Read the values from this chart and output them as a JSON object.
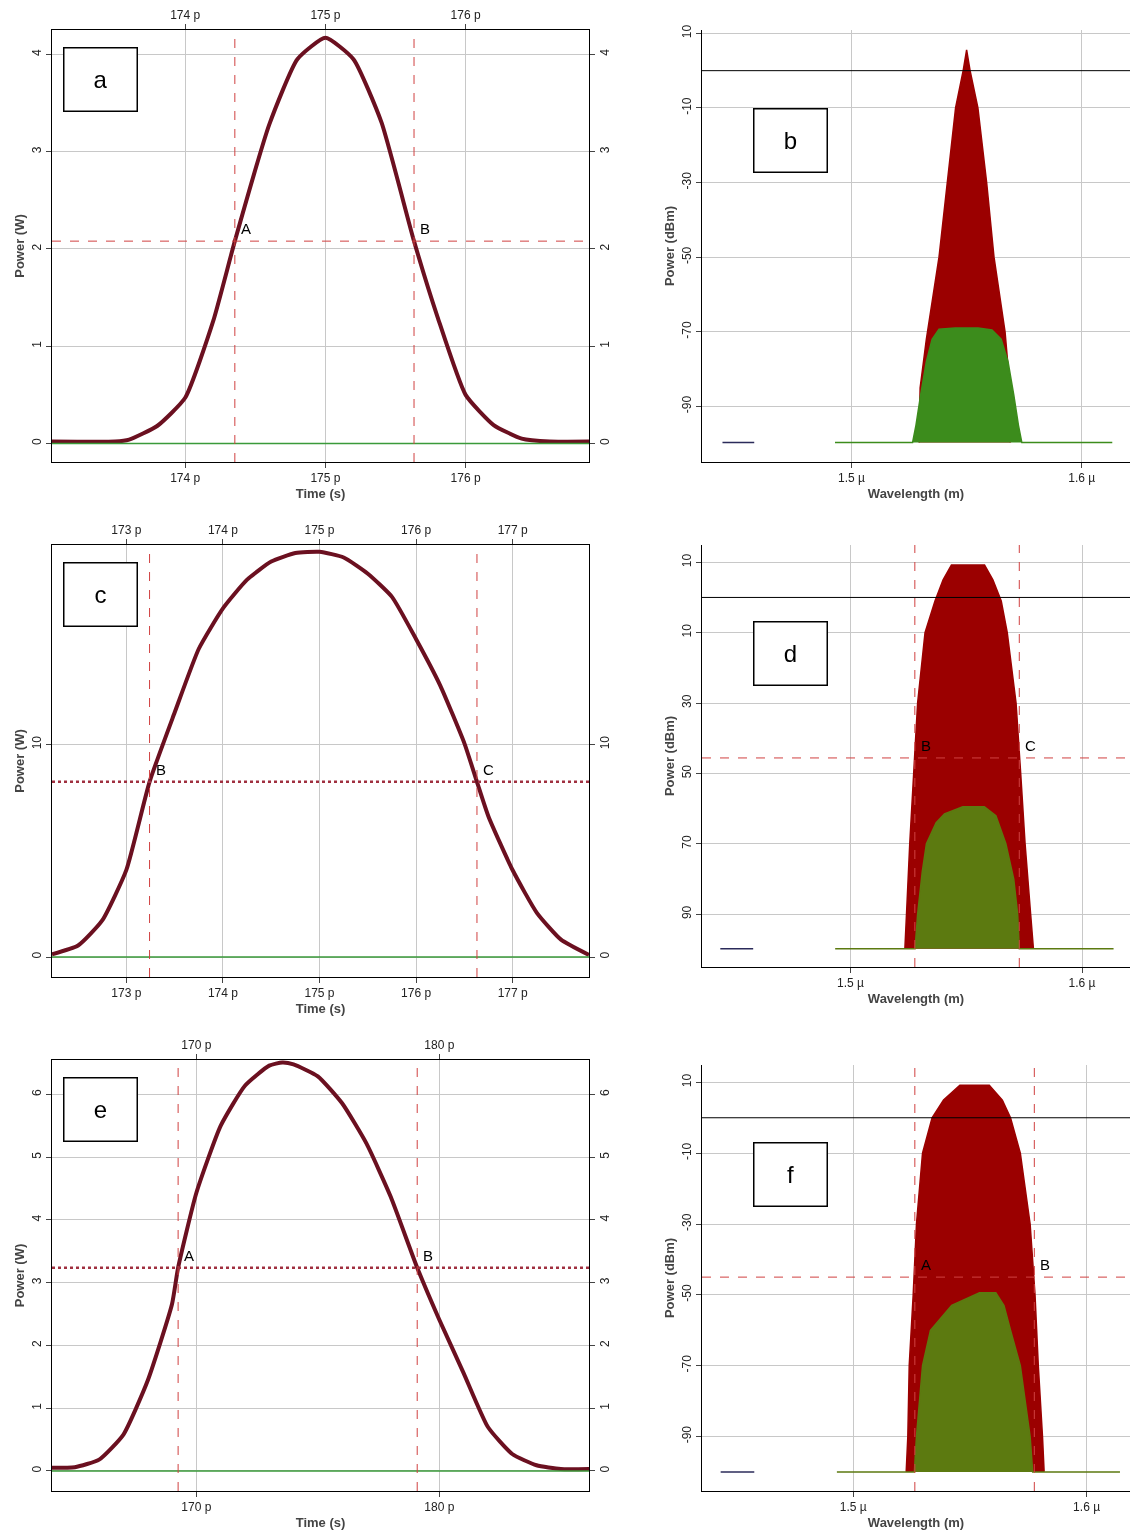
{
  "chart_data": [
    {
      "type": "line",
      "xlabel": "Time (s)",
      "ylabel": "Power (W)",
      "annotations": [
        "a",
        {
          "text": "A",
          "x": 174.354,
          "y": 2.08
        },
        {
          "text": "B",
          "x": 175.632,
          "y": 2.08
        }
      ],
      "xlim": [
        173.05,
        176.88
      ],
      "xticks": [
        {
          "value": 174,
          "label": "174 p"
        },
        {
          "value": 175,
          "label": "175 p"
        },
        {
          "value": 176,
          "label": "176 p"
        }
      ],
      "x2lim": [
        173.05,
        176.88
      ],
      "x2ticks": [
        {
          "value": 174,
          "label": "174 p"
        },
        {
          "value": 175,
          "label": "175 p"
        },
        {
          "value": 176,
          "label": "176 p"
        }
      ],
      "ylim": [
        -0.19,
        4.25
      ],
      "yticks": [
        0,
        1,
        2,
        3,
        4
      ],
      "y2lim": [
        -0.19,
        4.25
      ],
      "y2ticks": [
        0,
        1,
        2,
        3,
        4
      ],
      "grid": true,
      "ref_lines": [
        {
          "axis": "x",
          "value": 174.354,
          "color": "#d04040",
          "line_style": "dashed"
        },
        {
          "axis": "x",
          "value": 175.632,
          "color": "#d04040",
          "line_style": "dashed"
        },
        {
          "axis": "y",
          "value": 2.08,
          "color": "#d04040",
          "line_style": "dashed"
        }
      ],
      "series": [
        {
          "color": "#6b1020",
          "x": [
            173.05,
            173.5,
            173.6,
            173.8,
            174.0,
            174.2,
            174.354,
            174.6,
            174.8,
            175.0,
            175.2,
            175.4,
            175.632,
            175.8,
            176.0,
            176.2,
            176.4,
            176.6,
            176.88
          ],
          "values": [
            0.02,
            0.02,
            0.04,
            0.18,
            0.47,
            1.26,
            2.08,
            3.28,
            3.95,
            4.17,
            3.95,
            3.3,
            2.08,
            1.3,
            0.5,
            0.19,
            0.05,
            0.02,
            0.02
          ]
        },
        {
          "color": "#3a9a3a",
          "x": [
            173.05,
            176.88
          ],
          "values": [
            0,
            0
          ]
        }
      ]
    },
    {
      "type": "area",
      "xlabel": "Wavelength (m)",
      "ylabel": "Power (dBm)",
      "annotations": [
        "b"
      ],
      "xlim": [
        1.435,
        1.621
      ],
      "xticks": [
        {
          "value": 1.5,
          "label": "1.5 µ"
        },
        {
          "value": 1.6,
          "label": "1.6 µ"
        }
      ],
      "ylim": [
        -104.9,
        10.9
      ],
      "yticks": [
        10,
        -10,
        -30,
        -50,
        -70,
        -90
      ],
      "grid": true,
      "ref_lines": [
        {
          "axis": "y",
          "value": 0,
          "color": "#000000",
          "line_style": "solid"
        }
      ],
      "series": [
        {
          "color": "#9b0000",
          "x": [
            1.5293,
            1.5298,
            1.5325,
            1.538,
            1.5416,
            1.5452,
            1.5485,
            1.55,
            1.5515,
            1.5549,
            1.5587,
            1.5619,
            1.5667,
            1.5688,
            1.569
          ],
          "values": [
            -99.7,
            -85,
            -72,
            -50,
            -30,
            -10,
            0,
            5.6,
            0,
            -10,
            -30,
            -50,
            -70,
            -85,
            -99.7
          ]
        },
        {
          "color": "#3c8c1c",
          "x": [
            1.4928,
            1.5265,
            1.528,
            1.53,
            1.5325,
            1.535,
            1.538,
            1.545,
            1.555,
            1.561,
            1.565,
            1.568,
            1.5705,
            1.5725,
            1.574,
            1.6133
          ],
          "values": [
            -99.7,
            -99.7,
            -95,
            -87,
            -78,
            -72,
            -69.3,
            -69,
            -69,
            -69.5,
            -72,
            -78,
            -87,
            -95,
            -99.7,
            -99.7
          ]
        },
        {
          "type": "line",
          "color": "#2b2b5a",
          "x": [
            1.4439,
            1.4577
          ],
          "values": [
            -99.7,
            -99.7
          ]
        }
      ]
    },
    {
      "type": "line",
      "xlabel": "Time (s)",
      "ylabel": "Power (W)",
      "annotations": [
        "c",
        {
          "text": "B",
          "x": 173.24,
          "y": 8.24
        },
        {
          "text": "C",
          "x": 176.63,
          "y": 8.24
        }
      ],
      "xlim": [
        172.23,
        177.79
      ],
      "xticks": [
        {
          "value": 173,
          "label": "173 p"
        },
        {
          "value": 174,
          "label": "174 p"
        },
        {
          "value": 175,
          "label": "175 p"
        },
        {
          "value": 176,
          "label": "176 p"
        },
        {
          "value": 177,
          "label": "177 p"
        }
      ],
      "x2lim": [
        172.23,
        177.79
      ],
      "x2ticks": [
        {
          "value": 173,
          "label": "173 p"
        },
        {
          "value": 174,
          "label": "174 p"
        },
        {
          "value": 175,
          "label": "175 p"
        },
        {
          "value": 176,
          "label": "176 p"
        },
        {
          "value": 177,
          "label": "177 p"
        }
      ],
      "ylim": [
        -0.94,
        19.38
      ],
      "yticks": [
        0,
        10
      ],
      "y2lim": [
        -0.94,
        19.38
      ],
      "y2ticks": [
        0,
        10
      ],
      "grid": true,
      "ref_lines": [
        {
          "axis": "x",
          "value": 173.24,
          "color": "#d04040",
          "line_style": "dashed"
        },
        {
          "axis": "x",
          "value": 176.63,
          "color": "#d04040",
          "line_style": "dashed"
        },
        {
          "axis": "y",
          "value": 8.24,
          "color": "#a03040",
          "line_style": "dotted"
        }
      ],
      "series": [
        {
          "color": "#6b1020",
          "x": [
            172.23,
            172.5,
            172.75,
            173.0,
            173.24,
            173.5,
            173.75,
            174.0,
            174.25,
            174.5,
            174.75,
            175.0,
            175.25,
            175.5,
            175.75,
            176.0,
            176.25,
            176.5,
            176.63,
            176.75,
            177.0,
            177.25,
            177.5,
            177.79
          ],
          "values": [
            0.13,
            0.54,
            1.72,
            4.1,
            8.24,
            11.5,
            14.5,
            16.4,
            17.75,
            18.6,
            19.0,
            19.06,
            18.79,
            18.03,
            16.94,
            14.95,
            12.77,
            10.05,
            8.24,
            6.6,
            4.08,
            2.08,
            0.82,
            0.1
          ]
        },
        {
          "color": "#3a9a3a",
          "x": [
            172.23,
            177.79
          ],
          "values": [
            0,
            0
          ]
        }
      ]
    },
    {
      "type": "area",
      "xlabel": "Wavelength (m)",
      "ylabel": "Power (dBm)",
      "annotations": [
        "d",
        {
          "text": "B",
          "x": 1.5278,
          "y": -45.6
        },
        {
          "text": "C",
          "x": 1.5729,
          "y": -45.6
        }
      ],
      "xlim": [
        1.4359,
        1.6207
      ],
      "xticks": [
        {
          "value": 1.5,
          "label": "1.5 µ"
        },
        {
          "value": 1.6,
          "label": "1.6 µ"
        }
      ],
      "ylim": [
        -105,
        14.9
      ],
      "yticks": [
        10,
        {
          "value": -10,
          "label": "10"
        },
        {
          "value": -30,
          "label": "30"
        },
        {
          "value": -50,
          "label": "50"
        },
        {
          "value": -70,
          "label": "70"
        },
        {
          "value": -90,
          "label": "90"
        }
      ],
      "grid": true,
      "ref_lines": [
        {
          "axis": "y",
          "value": 0,
          "color": "#000000",
          "line_style": "solid"
        },
        {
          "axis": "x",
          "value": 1.5278,
          "color": "#d04040",
          "line_style": "dashed"
        },
        {
          "axis": "x",
          "value": 1.5729,
          "color": "#d04040",
          "line_style": "dashed"
        },
        {
          "axis": "y",
          "value": -45.6,
          "color": "#d04040",
          "line_style": "dashed"
        }
      ],
      "series": [
        {
          "color": "#9b0000",
          "x": [
            1.5235,
            1.5242,
            1.5256,
            1.5273,
            1.529,
            1.5322,
            1.5365,
            1.54,
            1.5436,
            1.5579,
            1.5615,
            1.5651,
            1.5677,
            1.5715,
            1.5735,
            1.5754,
            1.5778,
            1.579
          ],
          "values": [
            -99.8,
            -90,
            -70,
            -50,
            -30,
            -10,
            -1,
            5,
            9.2,
            9.2,
            5,
            -1,
            -10,
            -30,
            -50,
            -70,
            -90,
            -99.8
          ]
        },
        {
          "color": "#5c7a10",
          "x": [
            1.4934,
            1.5279,
            1.529,
            1.531,
            1.5328,
            1.537,
            1.5406,
            1.5485,
            1.5578,
            1.5628,
            1.5671,
            1.5705,
            1.5722,
            1.5729,
            1.6136
          ],
          "values": [
            -99.8,
            -99.8,
            -90,
            -78,
            -70,
            -64,
            -61.5,
            -59.5,
            -59.5,
            -62,
            -70,
            -80,
            -90,
            -99.8,
            -99.8
          ]
        },
        {
          "type": "line",
          "color": "#2b2b5a",
          "x": [
            1.4438,
            1.458
          ],
          "values": [
            -99.8,
            -99.8
          ]
        }
      ]
    },
    {
      "type": "line",
      "xlabel": "Time (s)",
      "ylabel": "Power (W)",
      "annotations": [
        "e",
        {
          "text": "A",
          "x": 169.25,
          "y": 3.24
        },
        {
          "text": "B",
          "x": 179.09,
          "y": 3.24
        }
      ],
      "xlim": [
        164.06,
        186.16
      ],
      "xticks": [
        {
          "value": 170,
          "label": "170 p"
        },
        {
          "value": 180,
          "label": "180 p"
        }
      ],
      "x2lim": [
        164.06,
        186.16
      ],
      "x2ticks": [
        {
          "value": 170,
          "label": "170 p"
        },
        {
          "value": 180,
          "label": "180 p"
        }
      ],
      "ylim": [
        -0.32,
        6.55
      ],
      "yticks": [
        0,
        1,
        2,
        3,
        4,
        5,
        6
      ],
      "y2lim": [
        -0.32,
        6.55
      ],
      "y2ticks": [
        0,
        1,
        2,
        3,
        4,
        5,
        6
      ],
      "grid": true,
      "ref_lines": [
        {
          "axis": "x",
          "value": 169.25,
          "color": "#d04040",
          "line_style": "dashed"
        },
        {
          "axis": "x",
          "value": 179.09,
          "color": "#d04040",
          "line_style": "dashed"
        },
        {
          "axis": "y",
          "value": 3.24,
          "color": "#a03040",
          "line_style": "dotted"
        }
      ],
      "series": [
        {
          "color": "#6b1020",
          "x": [
            164.06,
            165,
            166,
            167,
            168,
            169,
            169.25,
            170,
            171,
            172,
            173,
            173.54,
            174,
            175,
            176,
            177,
            178,
            179.09,
            180,
            181,
            182,
            183,
            184,
            185,
            186.16
          ],
          "values": [
            0.05,
            0.06,
            0.18,
            0.58,
            1.44,
            2.66,
            3.24,
            4.43,
            5.5,
            6.14,
            6.46,
            6.51,
            6.48,
            6.29,
            5.86,
            5.22,
            4.37,
            3.24,
            2.41,
            1.56,
            0.7,
            0.27,
            0.09,
            0.03,
            0.03
          ]
        },
        {
          "color": "#3a9a3a",
          "x": [
            164.06,
            186.16
          ],
          "values": [
            0,
            0
          ]
        }
      ]
    },
    {
      "type": "area",
      "xlabel": "Wavelength (m)",
      "ylabel": "Power (dBm)",
      "annotations": [
        "f",
        {
          "text": "A",
          "x": 1.5264,
          "y": -45
        },
        {
          "text": "B",
          "x": 1.5776,
          "y": -45
        }
      ],
      "xlim": [
        1.4352,
        1.6186
      ],
      "xticks": [
        {
          "value": 1.5,
          "label": "1.5 µ"
        },
        {
          "value": 1.6,
          "label": "1.6 µ"
        }
      ],
      "ylim": [
        -105.4,
        14.9
      ],
      "yticks": [
        10,
        -10,
        -30,
        -50,
        -70,
        -90
      ],
      "grid": true,
      "ref_lines": [
        {
          "axis": "y",
          "value": 0,
          "color": "#000000",
          "line_style": "solid"
        },
        {
          "axis": "x",
          "value": 1.5264,
          "color": "#d04040",
          "line_style": "dashed"
        },
        {
          "axis": "x",
          "value": 1.5776,
          "color": "#d04040",
          "line_style": "dashed"
        },
        {
          "axis": "y",
          "value": -45,
          "color": "#d04040",
          "line_style": "dashed"
        }
      ],
      "series": [
        {
          "color": "#9b0000",
          "x": [
            1.5227,
            1.5234,
            1.524,
            1.5257,
            1.5271,
            1.5297,
            1.5338,
            1.5387,
            1.5457,
            1.5583,
            1.5639,
            1.5674,
            1.5716,
            1.5758,
            1.5779,
            1.5793,
            1.5811,
            1.5818
          ],
          "values": [
            -100,
            -90,
            -70,
            -50,
            -30,
            -10,
            0,
            5,
            9.2,
            9.2,
            5,
            0,
            -10,
            -30,
            -50,
            -70,
            -90,
            -100
          ]
        },
        {
          "color": "#5c7a10",
          "x": [
            1.493,
            1.5262,
            1.5271,
            1.5297,
            1.5331,
            1.5422,
            1.5541,
            1.5611,
            1.5646,
            1.5674,
            1.5716,
            1.5758,
            1.5769,
            1.6143
          ],
          "values": [
            -100,
            -100,
            -90,
            -70,
            -60,
            -53,
            -49.4,
            -49.4,
            -53,
            -60,
            -70,
            -90,
            -100,
            -100
          ]
        },
        {
          "type": "line",
          "color": "#2b2b5a",
          "x": [
            1.4432,
            1.4576
          ],
          "values": [
            -100,
            -100
          ]
        }
      ]
    }
  ]
}
